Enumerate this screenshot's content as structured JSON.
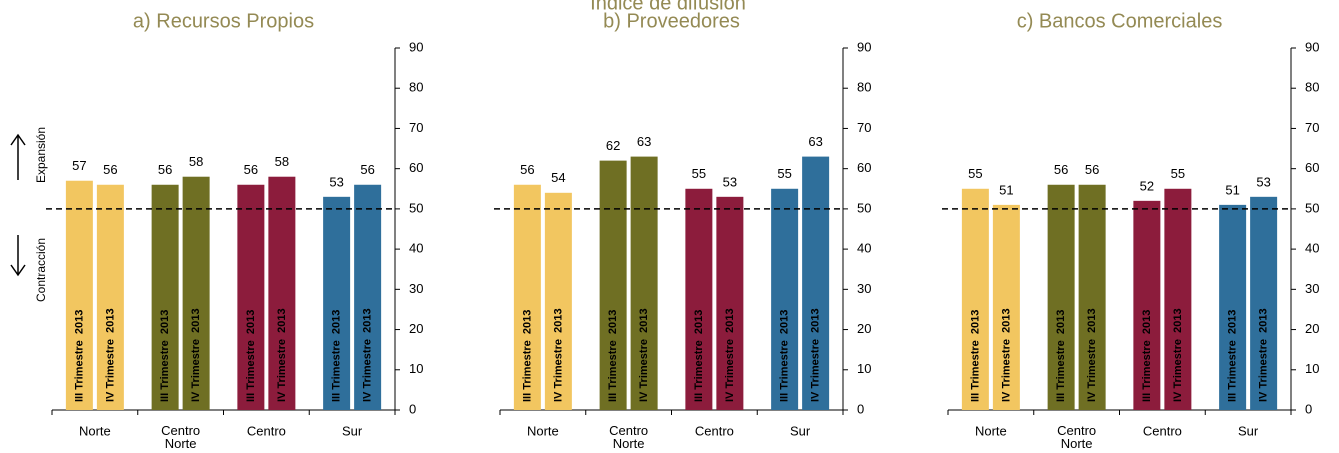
{
  "title": "Índice de difusión",
  "chart_data": [
    {
      "type": "bar",
      "title": "a) Recursos Propios",
      "categories": [
        "Norte",
        "Centro Norte",
        "Centro",
        "Sur"
      ],
      "category_colors": [
        "#f2c660",
        "#6f6f23",
        "#8c1c3c",
        "#2f6f9b"
      ],
      "series": [
        {
          "name": "III Trimestre  2013",
          "values": [
            57,
            56,
            56,
            53
          ]
        },
        {
          "name": "IV Trimestre  2013",
          "values": [
            56,
            58,
            58,
            56
          ]
        }
      ],
      "ylim": [
        0,
        90
      ],
      "yticks": [
        0,
        10,
        20,
        30,
        40,
        50,
        60,
        70,
        80,
        90
      ],
      "reference_line": 50,
      "annotations": [
        "Expansión",
        "Contracción"
      ]
    },
    {
      "type": "bar",
      "title": "b) Proveedores",
      "categories": [
        "Norte",
        "Centro Norte",
        "Centro",
        "Sur"
      ],
      "category_colors": [
        "#f2c660",
        "#6f6f23",
        "#8c1c3c",
        "#2f6f9b"
      ],
      "series": [
        {
          "name": "III Trimestre  2013",
          "values": [
            56,
            62,
            55,
            55
          ]
        },
        {
          "name": "IV Trimestre  2013",
          "values": [
            54,
            63,
            53,
            63
          ]
        }
      ],
      "ylim": [
        0,
        90
      ],
      "yticks": [
        0,
        10,
        20,
        30,
        40,
        50,
        60,
        70,
        80,
        90
      ],
      "reference_line": 50
    },
    {
      "type": "bar",
      "title": "c) Bancos Comerciales",
      "categories": [
        "Norte",
        "Centro Norte",
        "Centro",
        "Sur"
      ],
      "category_colors": [
        "#f2c660",
        "#6f6f23",
        "#8c1c3c",
        "#2f6f9b"
      ],
      "series": [
        {
          "name": "III Trimestre  2013",
          "values": [
            55,
            56,
            52,
            51
          ]
        },
        {
          "name": "IV Trimestre  2013",
          "values": [
            51,
            56,
            55,
            53
          ]
        }
      ],
      "ylim": [
        0,
        90
      ],
      "yticks": [
        0,
        10,
        20,
        30,
        40,
        50,
        60,
        70,
        80,
        90
      ],
      "reference_line": 50
    }
  ]
}
